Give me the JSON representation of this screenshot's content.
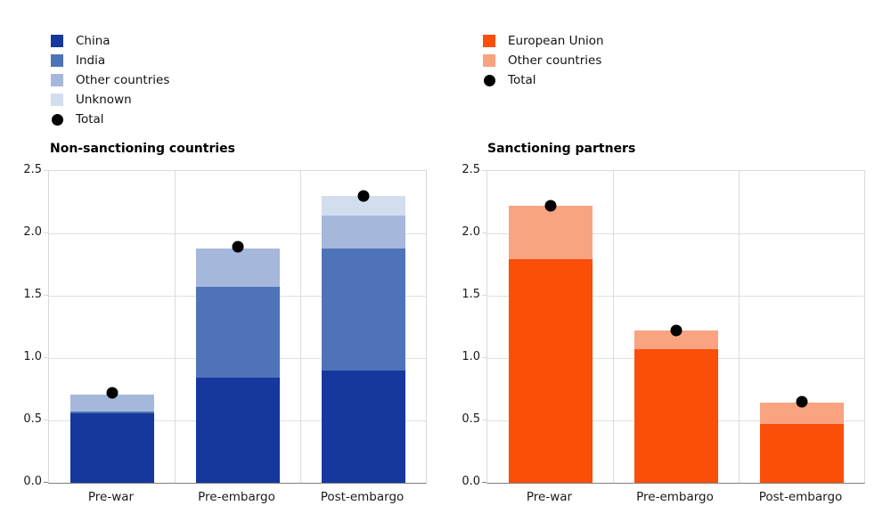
{
  "chart_data": [
    {
      "type": "stacked_bar_with_total_dots",
      "title": "Non-sanctioning countries",
      "categories": [
        "Pre-war",
        "Pre-embargo",
        "Post-embargo"
      ],
      "series": [
        {
          "name": "China",
          "color": "#16379e",
          "values": [
            0.56,
            0.84,
            0.9
          ]
        },
        {
          "name": "India",
          "color": "#4f73b8",
          "values": [
            0.01,
            0.73,
            0.98
          ]
        },
        {
          "name": "Other countries",
          "color": "#a5b8db",
          "values": [
            0.14,
            0.31,
            0.26
          ]
        },
        {
          "name": "Unknown",
          "color": "#d2ddee",
          "values": [
            0.0,
            0.0,
            0.16
          ]
        }
      ],
      "totals": {
        "name": "Total",
        "color": "#000000",
        "values": [
          0.72,
          1.89,
          2.3
        ]
      },
      "y_ticks": [
        "0.0",
        "0.5",
        "1.0",
        "1.5",
        "2.0",
        "2.5"
      ],
      "ylim": [
        0,
        2.5
      ],
      "grid": "horizontal gridlines + vertical column separators",
      "legend_position": "top-left"
    },
    {
      "type": "stacked_bar_with_total_dots",
      "title": "Sanctioning partners",
      "categories": [
        "Pre-war",
        "Pre-embargo",
        "Post-embargo"
      ],
      "series": [
        {
          "name": "European Union",
          "color": "#fb4e09",
          "values": [
            1.79,
            1.07,
            0.47
          ]
        },
        {
          "name": "Other countries",
          "color": "#f9a381",
          "values": [
            0.43,
            0.15,
            0.17
          ]
        }
      ],
      "totals": {
        "name": "Total",
        "color": "#000000",
        "values": [
          2.22,
          1.22,
          0.65
        ]
      },
      "y_ticks": [
        "0.0",
        "0.5",
        "1.0",
        "1.5",
        "2.0",
        "2.5"
      ],
      "ylim": [
        0,
        2.5
      ],
      "grid": "horizontal gridlines + vertical column separators",
      "legend_position": "top-left"
    }
  ]
}
